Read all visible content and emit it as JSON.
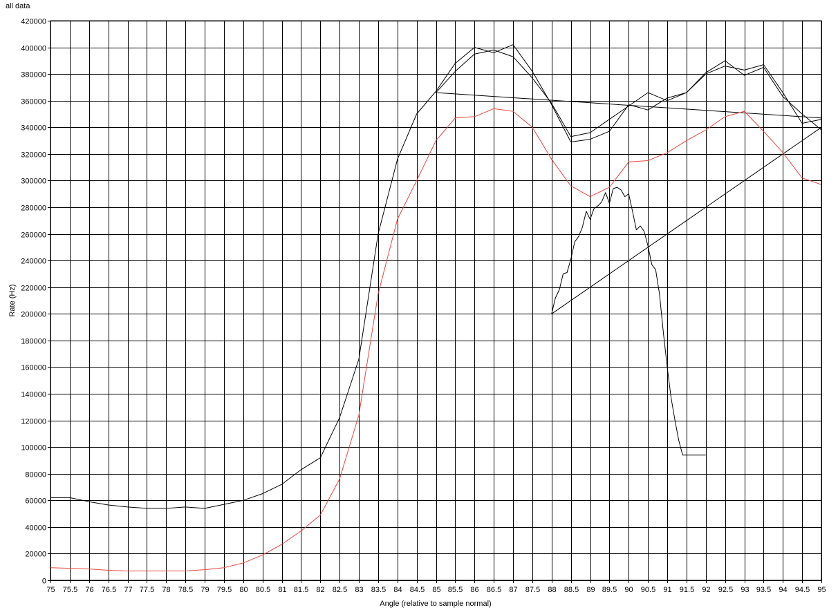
{
  "chart_data": {
    "type": "line",
    "title": "all data",
    "xlabel": "Angle (relative to sample normal)",
    "ylabel": "Rate (Hz)",
    "xlim": [
      75,
      95
    ],
    "ylim": [
      0,
      420000
    ],
    "x_ticks": [
      "75",
      "75.5",
      "76",
      "76.5",
      "77",
      "77.5",
      "78",
      "78.5",
      "79",
      "79.5",
      "80",
      "80.5",
      "81",
      "81.5",
      "82",
      "82.5",
      "83",
      "83.5",
      "84",
      "84.5",
      "85",
      "85.5",
      "86",
      "86.5",
      "87",
      "87.5",
      "88",
      "88.5",
      "89",
      "89.5",
      "90",
      "90.5",
      "91",
      "91.5",
      "92",
      "92.5",
      "93",
      "93.5",
      "94",
      "94.5",
      "95"
    ],
    "y_ticks": [
      "0",
      "20000",
      "40000",
      "60000",
      "80000",
      "100000",
      "120000",
      "140000",
      "160000",
      "180000",
      "200000",
      "220000",
      "240000",
      "260000",
      "280000",
      "300000",
      "320000",
      "340000",
      "360000",
      "380000",
      "400000",
      "420000"
    ],
    "grid": true,
    "series": [
      {
        "color": "#000000",
        "x": [
          75,
          75.5,
          76,
          76.5,
          77,
          77.5,
          78,
          78.5,
          79,
          79.5,
          80,
          80.5,
          81,
          81.5,
          82,
          82.5,
          83,
          83.5,
          84,
          84.5,
          85,
          85.5,
          86,
          86.5,
          87,
          87.5,
          88,
          88.5,
          89,
          89.5,
          90,
          90.5,
          91,
          91.5,
          92,
          92.5,
          93,
          93.5,
          94,
          94.5,
          95
        ],
        "y": [
          62000,
          62000,
          59000,
          56500,
          55000,
          54000,
          54000,
          55000,
          54000,
          57000,
          60000,
          65000,
          72000,
          83000,
          92000,
          122000,
          166000,
          260000,
          316000,
          350000,
          367000,
          388000,
          400000,
          396000,
          402000,
          382000,
          357000,
          329000,
          331000,
          337000,
          357000,
          353000,
          362000,
          366000,
          380000,
          386000,
          383000,
          387000,
          366000,
          343000,
          346000
        ]
      },
      {
        "color": "#000000",
        "x": [
          85,
          85.5,
          86,
          86.5,
          87,
          87.5,
          88,
          88.5,
          89,
          89.5,
          90,
          90.5,
          91,
          91.5,
          92,
          92.5,
          93,
          93.5,
          94,
          94.5,
          95
        ],
        "y": [
          366000,
          382000,
          395000,
          398000,
          393000,
          377000,
          358000,
          333000,
          336000,
          346000,
          356000,
          366000,
          360000,
          366000,
          381000,
          390000,
          379000,
          385000,
          363000,
          350000,
          338000
        ]
      },
      {
        "color": "#000000",
        "x": [
          85,
          95
        ],
        "y": [
          366000,
          347000
        ]
      },
      {
        "color": "#000000",
        "x": [
          88,
          95
        ],
        "y": [
          200000,
          340000
        ]
      },
      {
        "color": "#000000",
        "x": [
          88,
          88.1,
          88.2,
          88.3,
          88.4,
          88.5,
          88.6,
          88.7,
          88.8,
          88.9,
          89,
          89.1,
          89.2,
          89.3,
          89.4,
          89.5,
          89.6,
          89.7,
          89.8,
          89.9,
          90,
          90.1,
          90.2,
          90.3,
          90.4,
          90.5,
          90.6,
          90.7,
          90.8,
          90.9,
          91,
          91.1,
          91.2,
          91.3,
          91.4,
          91.5,
          91.6,
          91.7,
          91.8,
          91.9,
          92
        ],
        "y": [
          200000,
          212000,
          218000,
          230000,
          231000,
          241000,
          254000,
          258000,
          265000,
          277000,
          271000,
          279000,
          281000,
          284000,
          291000,
          283000,
          294000,
          295000,
          293000,
          288000,
          290000,
          277000,
          263000,
          266000,
          262000,
          251000,
          237000,
          233000,
          215000,
          186000,
          160000,
          137000,
          120000,
          105000,
          94000,
          94000,
          94000,
          94000,
          94000,
          94000,
          94000
        ]
      },
      {
        "color": "#e8463a",
        "x": [
          75,
          75.5,
          76,
          76.5,
          77,
          77.5,
          78,
          78.5,
          79,
          79.5,
          80,
          80.5,
          81,
          81.5,
          82,
          82.5,
          83,
          83.5,
          84,
          84.5,
          85,
          85.5,
          86,
          86.5,
          87,
          87.5,
          88,
          88.5,
          89,
          89.5,
          90,
          90.5,
          91,
          91.5,
          92,
          92.5,
          93,
          93.5,
          94,
          94.5,
          95
        ],
        "y": [
          9500,
          9000,
          8500,
          7500,
          7000,
          7000,
          7000,
          7000,
          8000,
          9500,
          13000,
          19000,
          27000,
          37000,
          49000,
          76000,
          124000,
          215000,
          271000,
          300000,
          330000,
          347000,
          348000,
          354000,
          352000,
          340000,
          316000,
          296000,
          288000,
          295000,
          314000,
          315000,
          321000,
          330000,
          338000,
          348000,
          352000,
          337000,
          321000,
          302000,
          297000
        ]
      }
    ]
  }
}
